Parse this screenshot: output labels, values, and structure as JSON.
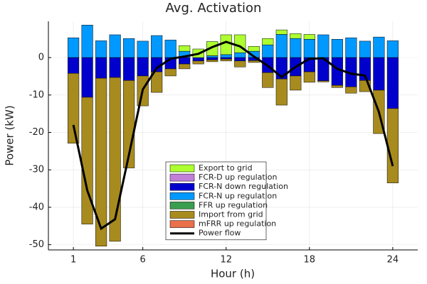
{
  "chart_data": {
    "type": "bar",
    "title": "Avg. Activation",
    "x_label": "Hour (h)",
    "y_label": "Power (kW)",
    "x": [
      1,
      2,
      3,
      4,
      5,
      6,
      7,
      8,
      9,
      10,
      11,
      12,
      13,
      14,
      15,
      16,
      17,
      18,
      19,
      20,
      21,
      22,
      23,
      24
    ],
    "xlim": [
      -0.8,
      25.8
    ],
    "xticks": [
      1,
      6,
      12,
      18,
      24
    ],
    "ylim": [
      -51.4,
      9.7
    ],
    "yticks": [
      -50,
      -40,
      -30,
      -20,
      -10,
      0
    ],
    "grid": true,
    "legend": "bottom",
    "series": [
      {
        "name": "Export to grid",
        "color": "#adff2f",
        "values": [
          0,
          0,
          0,
          0,
          0,
          0,
          0,
          0,
          1.5,
          2.3,
          3.8,
          5.3,
          4.8,
          1.3,
          1.7,
          1.2,
          1.3,
          1.3,
          0,
          0,
          0,
          0,
          0,
          0
        ]
      },
      {
        "name": "FCR-D up regulation",
        "color": "#c27fd8",
        "values": [
          0,
          0,
          0,
          0,
          0,
          0,
          0,
          0,
          0,
          0,
          0,
          0,
          0,
          0,
          0,
          0,
          0,
          0,
          0,
          0,
          0,
          0,
          0,
          0
        ]
      },
      {
        "name": "FCR-N down regulation",
        "color": "#0000cd",
        "values": [
          -4.2,
          -10.6,
          -5.5,
          -5.3,
          -6.1,
          -4.9,
          -3.8,
          -3.0,
          -1.7,
          -0.9,
          -0.6,
          -0.4,
          -0.9,
          -0.8,
          -4.0,
          -5.7,
          -4.9,
          -3.8,
          -6.2,
          -7.4,
          -7.8,
          -6.1,
          -8.7,
          -13.6
        ]
      },
      {
        "name": "FCR-N up regulation",
        "color": "#0099ff",
        "values": [
          5.3,
          8.7,
          4.5,
          6.1,
          5.1,
          4.4,
          5.9,
          4.7,
          1.7,
          0,
          0.5,
          0.8,
          1.3,
          1.7,
          3.4,
          6.2,
          5.1,
          4.9,
          6.1,
          4.9,
          5.3,
          4.4,
          5.5,
          4.5
        ]
      },
      {
        "name": "FFR up regulation",
        "color": "#3a9e50",
        "values": [
          0,
          0,
          0,
          0,
          0,
          0,
          0,
          0,
          0,
          0,
          0,
          0,
          0,
          0,
          0,
          0,
          0,
          0,
          0,
          0,
          0,
          0,
          0,
          0
        ]
      },
      {
        "name": "Import from grid",
        "color": "#a88b1e",
        "values": [
          -18.7,
          -33.9,
          -44.9,
          -43.8,
          -23.4,
          -8.0,
          -5.5,
          -1.9,
          -1.3,
          -0.8,
          -0.5,
          -0.5,
          -1.6,
          -0.5,
          -4.0,
          -7.0,
          -3.8,
          -2.8,
          -0.3,
          -0.6,
          -1.7,
          -3.0,
          -11.6,
          -19.9
        ]
      },
      {
        "name": "mFRR up regulation",
        "color": "#e8704a",
        "values": [
          0,
          0,
          0,
          0,
          0,
          0,
          0,
          0,
          0,
          0,
          0,
          0,
          0,
          0,
          0,
          0,
          0,
          0,
          0,
          0,
          0,
          0,
          0,
          0
        ]
      },
      {
        "name": "Power flow",
        "color": "#000000",
        "type": "line",
        "values": [
          -18,
          -35.5,
          -45.7,
          -43.2,
          -26,
          -8.5,
          -2.8,
          -0.3,
          0.3,
          1.0,
          2.8,
          4.2,
          3.0,
          0.3,
          -2.2,
          -5.2,
          -2.5,
          -0.3,
          -0.2,
          -3.0,
          -4.3,
          -4.8,
          -14.5,
          -29
        ]
      }
    ]
  }
}
